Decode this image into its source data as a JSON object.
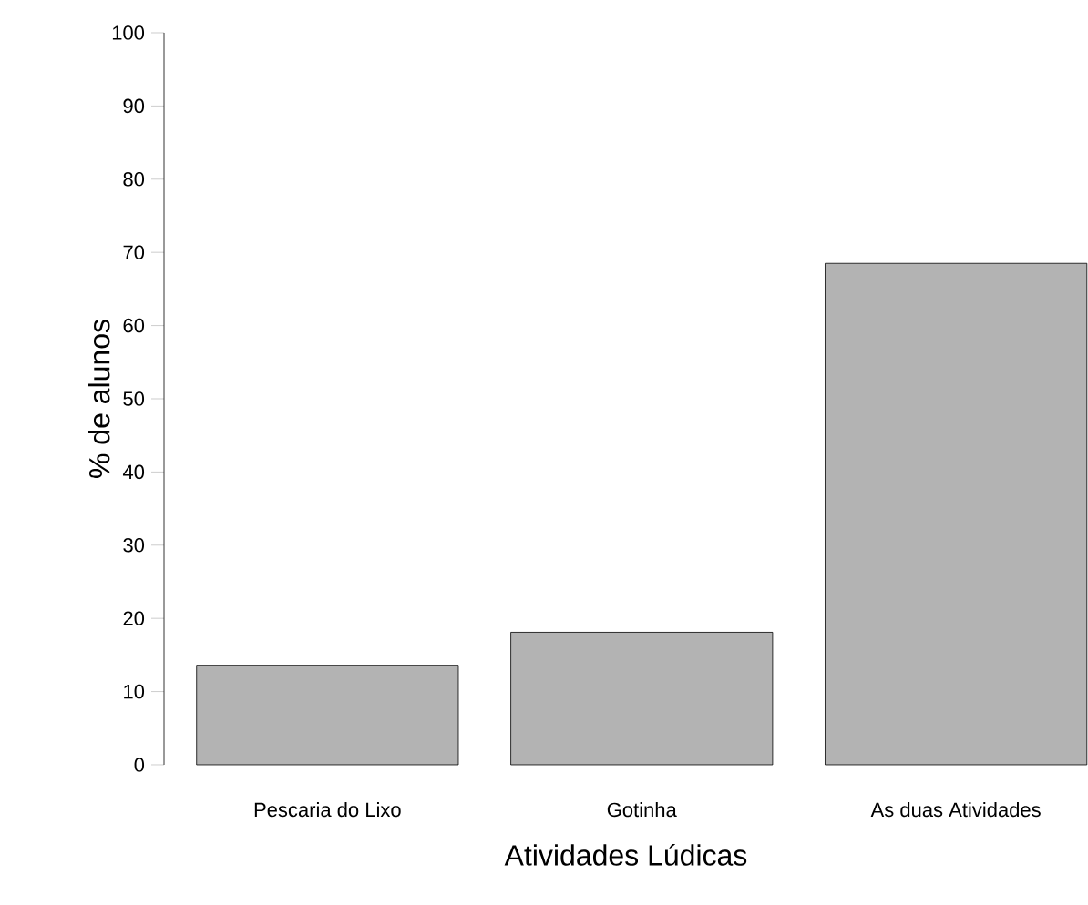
{
  "chart_data": {
    "type": "bar",
    "xlabel": "Atividades Lúdicas",
    "ylabel": "% de alunos",
    "categories": [
      "Pescaria do Lixo",
      "Gotinha",
      "As duas Atividades"
    ],
    "values": [
      13.6,
      18.1,
      68.5
    ],
    "color": "#b3b3b3",
    "ylim": [
      0,
      100
    ],
    "yticks": [
      0,
      10,
      20,
      30,
      40,
      50,
      60,
      70,
      80,
      90,
      100
    ]
  }
}
